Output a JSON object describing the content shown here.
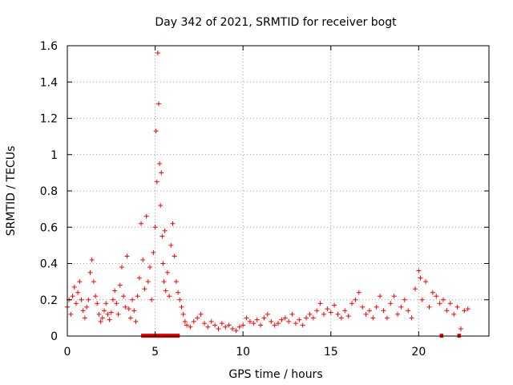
{
  "chart_data": {
    "type": "scatter",
    "title": "Day 342 of 2021, SRMTID for receiver bogt",
    "xlabel": "GPS time / hours",
    "ylabel": "SRMTID / TECUs",
    "xlim": [
      0,
      24
    ],
    "ylim": [
      0,
      1.6
    ],
    "x_ticks": [
      0,
      5,
      10,
      15,
      20
    ],
    "x_tick_labels": [
      "0",
      "5",
      "10",
      "15",
      "20"
    ],
    "y_ticks": [
      0,
      0.2,
      0.4,
      0.6,
      0.8,
      1.0,
      1.2,
      1.4,
      1.6
    ],
    "y_tick_labels": [
      "0",
      "0.2",
      "0.4",
      "0.6",
      "0.8",
      "1",
      "1.2",
      "1.4",
      "1.6"
    ],
    "grid": true,
    "marker": "+",
    "color": "#ff0000",
    "series": [
      {
        "name": "SRMTID",
        "points": [
          [
            0.0,
            0.16
          ],
          [
            0.1,
            0.2
          ],
          [
            0.2,
            0.12
          ],
          [
            0.3,
            0.22
          ],
          [
            0.4,
            0.27
          ],
          [
            0.5,
            0.18
          ],
          [
            0.6,
            0.24
          ],
          [
            0.7,
            0.3
          ],
          [
            0.8,
            0.2
          ],
          [
            0.9,
            0.14
          ],
          [
            1.0,
            0.1
          ],
          [
            1.1,
            0.16
          ],
          [
            1.2,
            0.2
          ],
          [
            1.3,
            0.35
          ],
          [
            1.4,
            0.42
          ],
          [
            1.5,
            0.3
          ],
          [
            1.6,
            0.22
          ],
          [
            1.7,
            0.18
          ],
          [
            1.8,
            0.12
          ],
          [
            1.9,
            0.08
          ],
          [
            2.0,
            0.1
          ],
          [
            2.1,
            0.14
          ],
          [
            2.2,
            0.18
          ],
          [
            2.3,
            0.12
          ],
          [
            2.4,
            0.09
          ],
          [
            2.5,
            0.13
          ],
          [
            2.6,
            0.2
          ],
          [
            2.7,
            0.25
          ],
          [
            2.8,
            0.18
          ],
          [
            2.9,
            0.12
          ],
          [
            3.0,
            0.28
          ],
          [
            3.1,
            0.38
          ],
          [
            3.2,
            0.22
          ],
          [
            3.3,
            0.16
          ],
          [
            3.4,
            0.44
          ],
          [
            3.5,
            0.15
          ],
          [
            3.6,
            0.1
          ],
          [
            3.7,
            0.2
          ],
          [
            3.8,
            0.14
          ],
          [
            3.9,
            0.08
          ],
          [
            4.0,
            0.22
          ],
          [
            4.1,
            0.32
          ],
          [
            4.2,
            0.62
          ],
          [
            4.3,
            0.42
          ],
          [
            4.4,
            0.26
          ],
          [
            4.5,
            0.66
          ],
          [
            4.6,
            0.3
          ],
          [
            4.7,
            0.38
          ],
          [
            4.8,
            0.2
          ],
          [
            4.9,
            0.46
          ],
          [
            5.0,
            0.6
          ],
          [
            5.05,
            1.13
          ],
          [
            5.1,
            0.85
          ],
          [
            5.15,
            1.56
          ],
          [
            5.2,
            1.28
          ],
          [
            5.25,
            0.95
          ],
          [
            5.3,
            0.72
          ],
          [
            5.35,
            0.9
          ],
          [
            5.4,
            0.55
          ],
          [
            5.45,
            0.4
          ],
          [
            5.5,
            0.3
          ],
          [
            5.55,
            0.58
          ],
          [
            5.6,
            0.25
          ],
          [
            5.7,
            0.35
          ],
          [
            5.8,
            0.22
          ],
          [
            5.9,
            0.5
          ],
          [
            6.0,
            0.62
          ],
          [
            6.1,
            0.44
          ],
          [
            6.2,
            0.3
          ],
          [
            6.3,
            0.24
          ],
          [
            6.4,
            0.2
          ],
          [
            6.5,
            0.16
          ],
          [
            6.6,
            0.12
          ],
          [
            6.7,
            0.08
          ],
          [
            6.8,
            0.06
          ],
          [
            7.0,
            0.05
          ],
          [
            7.2,
            0.08
          ],
          [
            7.4,
            0.1
          ],
          [
            7.6,
            0.12
          ],
          [
            7.8,
            0.07
          ],
          [
            8.0,
            0.05
          ],
          [
            8.2,
            0.08
          ],
          [
            8.4,
            0.06
          ],
          [
            8.6,
            0.04
          ],
          [
            8.8,
            0.07
          ],
          [
            9.0,
            0.05
          ],
          [
            9.2,
            0.06
          ],
          [
            9.4,
            0.04
          ],
          [
            9.6,
            0.03
          ],
          [
            9.8,
            0.05
          ],
          [
            10.0,
            0.06
          ],
          [
            10.2,
            0.1
          ],
          [
            10.4,
            0.08
          ],
          [
            10.6,
            0.07
          ],
          [
            10.8,
            0.09
          ],
          [
            11.0,
            0.06
          ],
          [
            11.2,
            0.1
          ],
          [
            11.4,
            0.12
          ],
          [
            11.6,
            0.08
          ],
          [
            11.8,
            0.06
          ],
          [
            12.0,
            0.07
          ],
          [
            12.2,
            0.09
          ],
          [
            12.4,
            0.1
          ],
          [
            12.6,
            0.08
          ],
          [
            12.8,
            0.12
          ],
          [
            13.0,
            0.07
          ],
          [
            13.2,
            0.09
          ],
          [
            13.4,
            0.06
          ],
          [
            13.6,
            0.1
          ],
          [
            13.8,
            0.12
          ],
          [
            14.0,
            0.1
          ],
          [
            14.2,
            0.14
          ],
          [
            14.4,
            0.18
          ],
          [
            14.6,
            0.12
          ],
          [
            14.8,
            0.15
          ],
          [
            15.0,
            0.13
          ],
          [
            15.2,
            0.17
          ],
          [
            15.4,
            0.12
          ],
          [
            15.6,
            0.1
          ],
          [
            15.8,
            0.14
          ],
          [
            16.0,
            0.11
          ],
          [
            16.2,
            0.18
          ],
          [
            16.4,
            0.2
          ],
          [
            16.6,
            0.24
          ],
          [
            16.8,
            0.16
          ],
          [
            17.0,
            0.12
          ],
          [
            17.2,
            0.14
          ],
          [
            17.4,
            0.1
          ],
          [
            17.6,
            0.16
          ],
          [
            17.8,
            0.22
          ],
          [
            18.0,
            0.14
          ],
          [
            18.2,
            0.1
          ],
          [
            18.4,
            0.18
          ],
          [
            18.6,
            0.22
          ],
          [
            18.8,
            0.12
          ],
          [
            19.0,
            0.16
          ],
          [
            19.2,
            0.2
          ],
          [
            19.4,
            0.14
          ],
          [
            19.6,
            0.1
          ],
          [
            19.8,
            0.26
          ],
          [
            20.0,
            0.36
          ],
          [
            20.1,
            0.32
          ],
          [
            20.2,
            0.2
          ],
          [
            20.4,
            0.3
          ],
          [
            20.6,
            0.16
          ],
          [
            20.8,
            0.24
          ],
          [
            21.0,
            0.22
          ],
          [
            21.2,
            0.18
          ],
          [
            21.4,
            0.2
          ],
          [
            21.6,
            0.14
          ],
          [
            21.8,
            0.18
          ],
          [
            22.0,
            0.12
          ],
          [
            22.2,
            0.16
          ],
          [
            22.4,
            0.04
          ],
          [
            22.6,
            0.14
          ],
          [
            22.8,
            0.15
          ]
        ],
        "gaps_at_zero": [
          [
            4.2,
            6.4
          ],
          [
            21.2,
            21.4
          ],
          [
            22.2,
            22.4
          ]
        ]
      }
    ]
  }
}
